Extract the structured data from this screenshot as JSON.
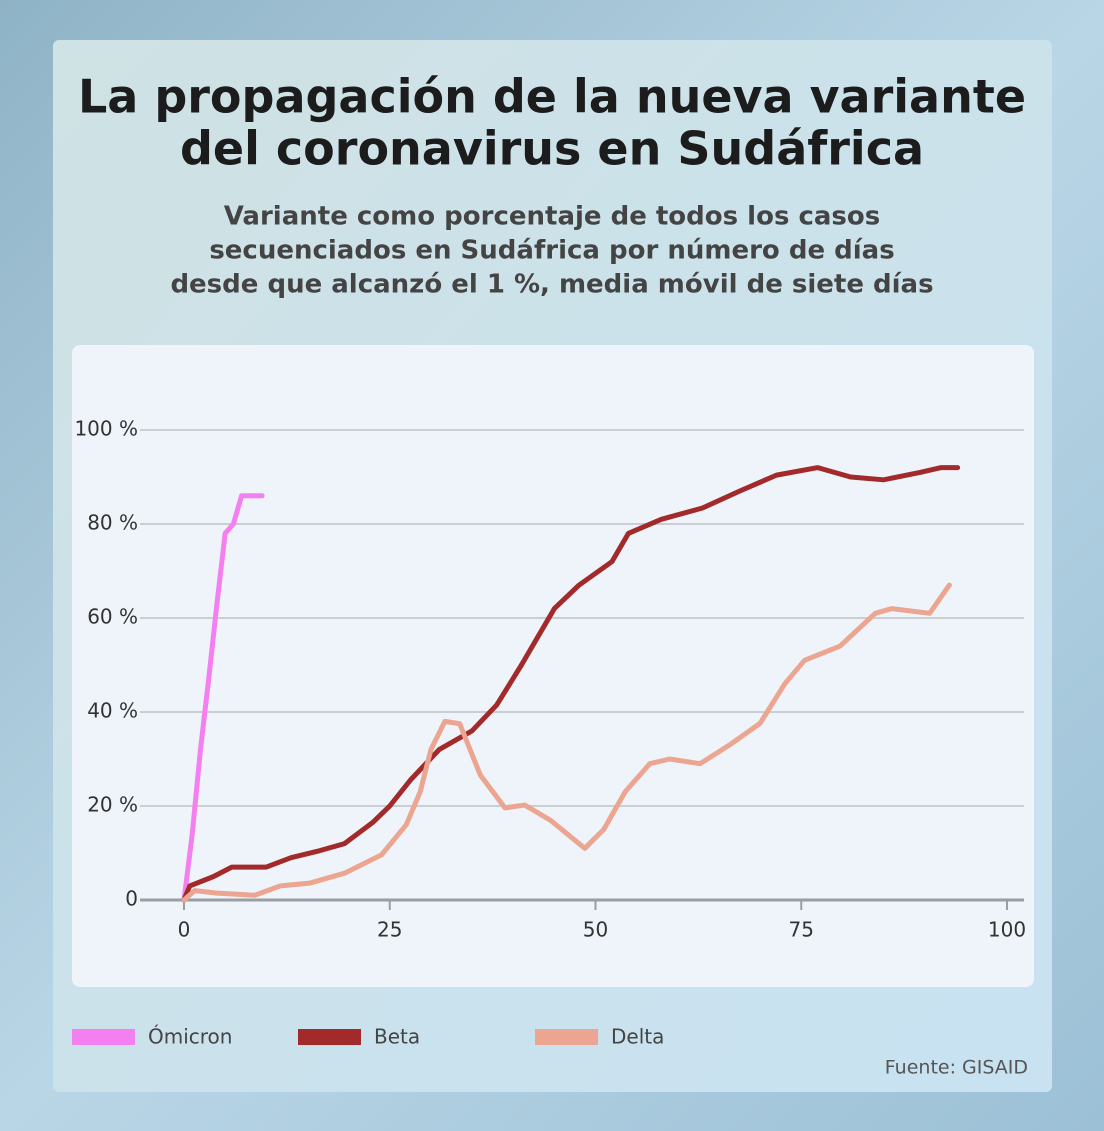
{
  "chart_data": {
    "type": "line",
    "title": [
      "La propagación de la nueva variante",
      "del coronavirus en Sudáfrica"
    ],
    "subtitle": [
      "Variante como porcentaje de todos los casos",
      "secuenciados en Sudáfrica por número de días",
      "desde que alcanzó el 1 %, media móvil de siete días"
    ],
    "source": "Fuente: GISAID",
    "xlim": [
      0,
      100
    ],
    "xticks": [
      0,
      25,
      50,
      75,
      100
    ],
    "ylim": [
      0,
      100
    ],
    "yticks": [
      0,
      {
        "value": 20,
        "label": "20 %"
      },
      {
        "value": 40,
        "label": "40 %"
      },
      {
        "value": 60,
        "label": "60 %"
      },
      {
        "value": 80,
        "label": "80 %"
      },
      {
        "value": 100,
        "label": "100 %"
      }
    ],
    "grid": true,
    "legend": "bottom",
    "series": [
      {
        "name": "Ómicron",
        "color": "#f47ff0",
        "x": [
          0,
          1,
          2,
          3,
          4,
          5,
          6,
          7,
          8,
          9.5
        ],
        "values": [
          0,
          14,
          32,
          47,
          63,
          78,
          80,
          86,
          86,
          86
        ]
      },
      {
        "name": "Beta",
        "color": "#a32a2a",
        "x": [
          0,
          0.7,
          3.6,
          5.8,
          10,
          13,
          16.5,
          19.5,
          23,
          25,
          27.5,
          31,
          35,
          38,
          41,
          45,
          48,
          52,
          54,
          58,
          63,
          67.5,
          72,
          77,
          81,
          85,
          89.5,
          92,
          94
        ],
        "values": [
          0,
          3,
          5,
          7,
          7,
          9,
          10.5,
          12,
          16.6,
          20,
          25.5,
          32,
          36,
          41.5,
          50,
          62,
          67,
          72,
          78,
          81,
          83.4,
          87,
          90.4,
          92,
          90,
          89.4,
          91,
          92,
          92
        ]
      },
      {
        "name": "Delta",
        "color": "#eba590",
        "x": [
          0,
          1.3,
          3.8,
          8.6,
          11.7,
          15.3,
          19.5,
          24,
          27,
          28.7,
          30,
          31.7,
          33.5,
          36,
          39,
          41.4,
          44.5,
          48.7,
          51,
          53.6,
          56.6,
          59,
          62.7,
          66.3,
          70,
          73,
          75.4,
          79.7,
          84,
          86,
          90.6,
          93
        ],
        "values": [
          0,
          2,
          1.5,
          1,
          3,
          3.6,
          5.7,
          9.6,
          16,
          23,
          32,
          38,
          37.5,
          26.6,
          19.6,
          20.2,
          17,
          11,
          15,
          23,
          29,
          30,
          29,
          33,
          37.6,
          46,
          51,
          54,
          61,
          62,
          61,
          67
        ]
      }
    ]
  }
}
